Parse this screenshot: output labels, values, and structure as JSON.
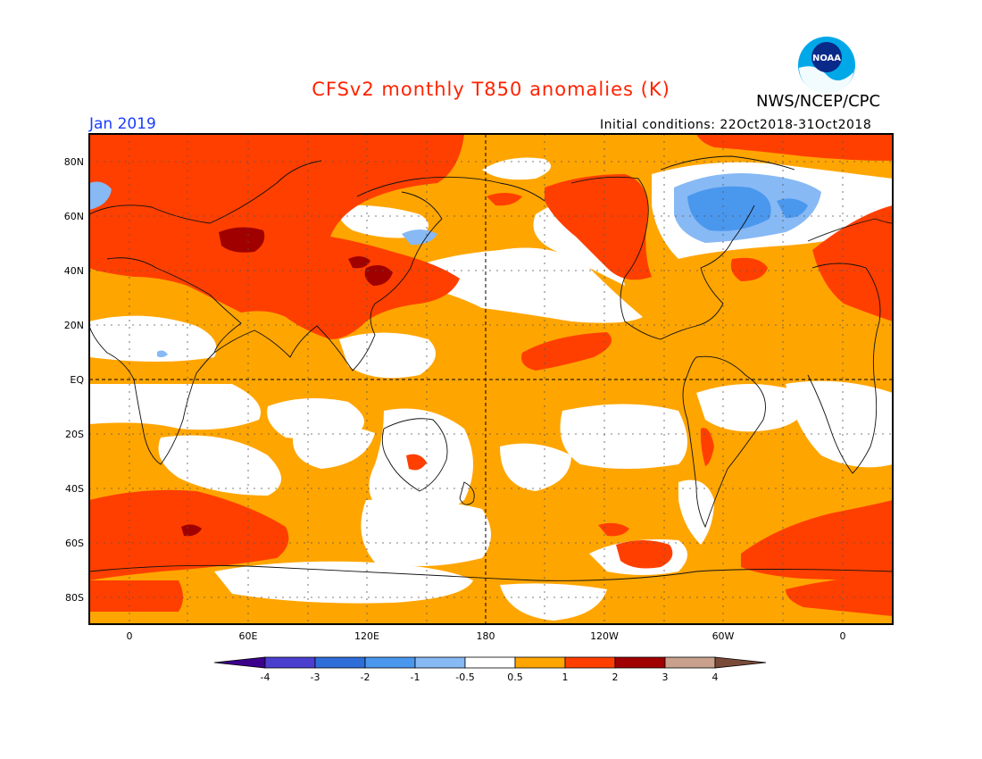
{
  "header": {
    "title": "CFSv2 monthly T850 anomalies (K)",
    "agency": "NWS/NCEP/CPC",
    "logo_text": "NOAA",
    "month": "Jan 2019",
    "initial_conditions": "Initial conditions: 22Oct2018-31Oct2018"
  },
  "map": {
    "lat_labels": [
      "80N",
      "60N",
      "40N",
      "20N",
      "EQ",
      "20S",
      "40S",
      "60S",
      "80S"
    ],
    "lon_labels": [
      "0",
      "60E",
      "120E",
      "180",
      "120W",
      "60W",
      "0"
    ],
    "projection": "cylindrical equidistant, centered on 180",
    "colors": {
      "neg_0_5_1": "#87b9f5",
      "neg_1_2": "#4a97ee",
      "neutral": "#ffffff",
      "pos_0_5_1": "#ffa500",
      "pos_1_2": "#ff3f00",
      "pos_2_3": "#a00000",
      "pos_3_4": "#c8a08c"
    }
  },
  "colorbar": {
    "labels": [
      "-4",
      "-3",
      "-2",
      "-1",
      "-0.5",
      "0.5",
      "1",
      "2",
      "3",
      "4"
    ],
    "colors": [
      "#3c008c",
      "#4b3fd0",
      "#2f6ed9",
      "#4a97ee",
      "#87b9f5",
      "#ffffff",
      "#ffa500",
      "#ff3f00",
      "#a00000",
      "#c8a08c",
      "#7a4a38"
    ]
  }
}
